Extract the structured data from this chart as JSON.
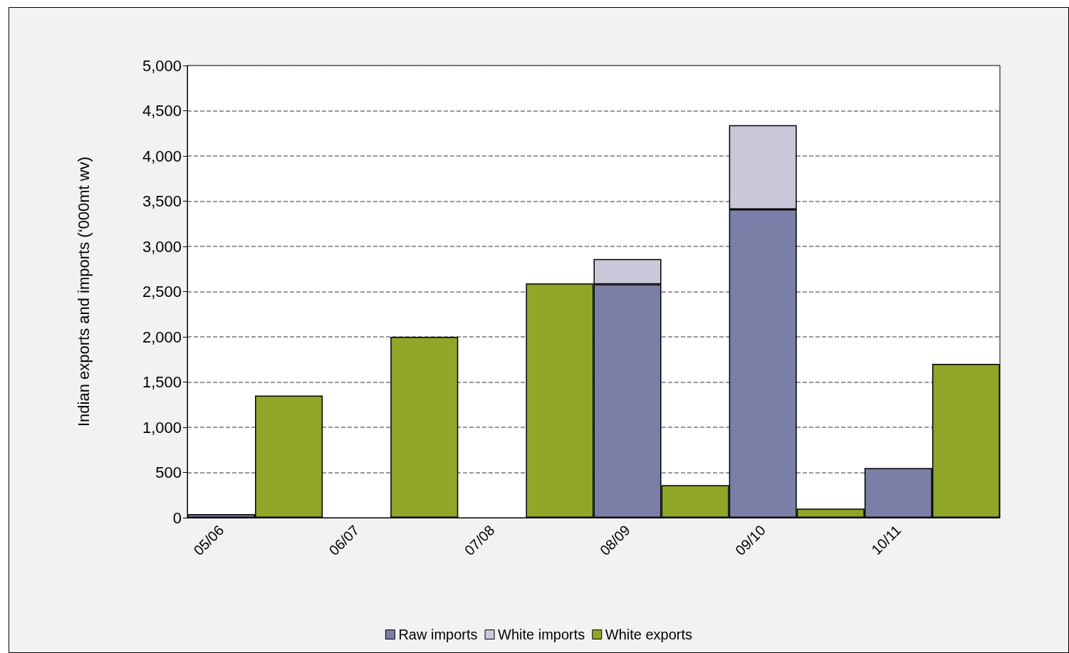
{
  "chart_data": {
    "type": "bar",
    "ylabel": "Indian exports and imports (‘000mt wv)",
    "stacked": true,
    "categories": [
      "05/06",
      null,
      "06/07",
      null,
      "07/08",
      null,
      "08/09",
      null,
      "09/10",
      null,
      "10/11",
      null
    ],
    "series": [
      {
        "name": "Raw imports",
        "color": "#7b7fa8",
        "values": [
          40,
          null,
          0,
          null,
          0,
          null,
          2580,
          null,
          3410,
          null,
          550,
          null
        ]
      },
      {
        "name": "White imports",
        "color": "#c8c8d8",
        "values": [
          0,
          null,
          0,
          null,
          0,
          null,
          280,
          null,
          930,
          null,
          0,
          null
        ]
      },
      {
        "name": "White exports",
        "color": "#8fa628",
        "values": [
          null,
          1350,
          null,
          2000,
          null,
          2590,
          null,
          360,
          null,
          100,
          null,
          1700
        ]
      }
    ],
    "ylim": [
      0,
      5000
    ],
    "yticks": [
      0,
      500,
      {
        "value": 1000,
        "label": "1,000"
      },
      {
        "value": 1500,
        "label": "1,500"
      },
      {
        "value": 2000,
        "label": "2,000"
      },
      {
        "value": 2500,
        "label": "2,500"
      },
      {
        "value": 3000,
        "label": "3,000"
      },
      {
        "value": 3500,
        "label": "3,500"
      },
      {
        "value": 4000,
        "label": "4,000"
      },
      {
        "value": 4500,
        "label": "4,500"
      },
      {
        "value": 5000,
        "label": "5,000"
      }
    ],
    "grid": "y",
    "legend": "bottom"
  }
}
